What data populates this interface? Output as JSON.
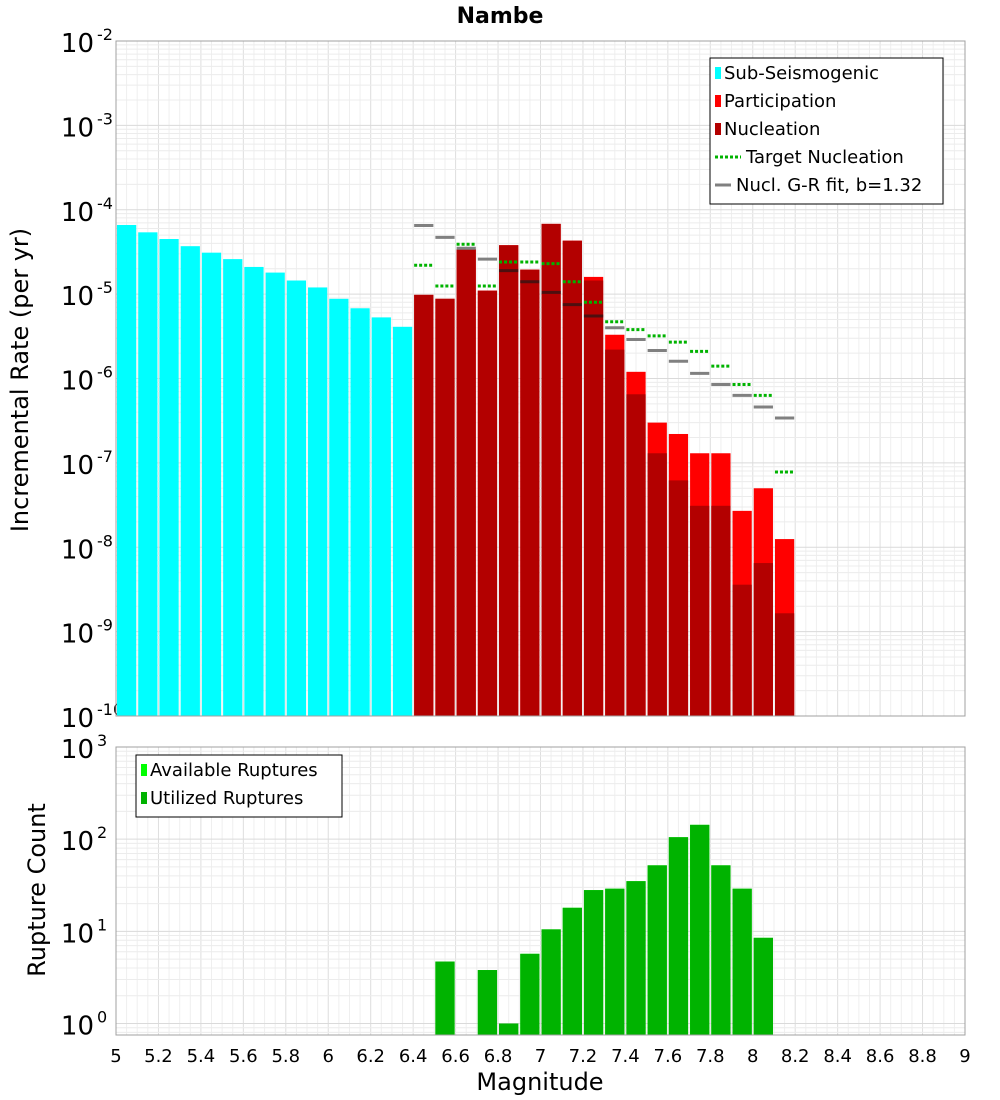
{
  "chart_data": [
    {
      "type": "bar",
      "title": "Nambe",
      "ylabel": "Incremental Rate (per yr)",
      "xlabel": "",
      "xlim": [
        5,
        9
      ],
      "ylim": [
        1e-10,
        0.01
      ],
      "yscale": "log",
      "grid": true,
      "legend_placement": "top-right",
      "legend": [
        {
          "label": "Sub-Seismogenic",
          "color": "#00ffff",
          "style": "box"
        },
        {
          "label": "Participation",
          "color": "#ff0000",
          "style": "box"
        },
        {
          "label": "Nucleation",
          "color": "#b30000",
          "style": "box"
        },
        {
          "label": "Target Nucleation",
          "color": "#00b300",
          "style": "dotted"
        },
        {
          "label": "Nucl. G-R fit, b=1.32",
          "color": "#808080",
          "style": "line"
        }
      ],
      "series": [
        {
          "name": "Sub-Seismogenic",
          "color": "#00ffff",
          "x": [
            5.05,
            5.15,
            5.25,
            5.35,
            5.45,
            5.55,
            5.65,
            5.75,
            5.85,
            5.95,
            6.05,
            6.15,
            6.25,
            6.35
          ],
          "values": [
            6.6e-05,
            5.4e-05,
            4.5e-05,
            3.7e-05,
            3.1e-05,
            2.6e-05,
            2.1e-05,
            1.8e-05,
            1.45e-05,
            1.2e-05,
            8.8e-06,
            6.8e-06,
            5.3e-06,
            4.1e-06
          ]
        },
        {
          "name": "Participation",
          "color": "#ff0000",
          "x": [
            6.45,
            6.55,
            6.65,
            6.75,
            6.85,
            6.95,
            7.05,
            7.15,
            7.25,
            7.35,
            7.45,
            7.55,
            7.65,
            7.75,
            7.85,
            7.95,
            8.05,
            8.15
          ],
          "values": [
            9.8e-06,
            8.8e-06,
            3.4e-05,
            1.1e-05,
            3.8e-05,
            1.95e-05,
            6.8e-05,
            4.3e-05,
            1.6e-05,
            3.3e-06,
            1.2e-06,
            3e-07,
            2.2e-07,
            1.3e-07,
            1.3e-07,
            2.7e-08,
            5e-08,
            1.25e-08
          ]
        },
        {
          "name": "Nucleation",
          "color": "#b30000",
          "x": [
            6.45,
            6.55,
            6.65,
            6.75,
            6.85,
            6.95,
            7.05,
            7.15,
            7.25,
            7.35,
            7.45,
            7.55,
            7.65,
            7.75,
            7.85,
            7.95,
            8.05,
            8.15
          ],
          "values": [
            9.8e-06,
            8.8e-06,
            3.4e-05,
            1.1e-05,
            3.8e-05,
            1.95e-05,
            6.8e-05,
            4.3e-05,
            1.45e-05,
            2.2e-06,
            6.5e-07,
            1.3e-07,
            6.2e-08,
            3.1e-08,
            3.1e-08,
            3.6e-09,
            6.5e-09,
            1.65e-09
          ]
        },
        {
          "name": "Target Nucleation",
          "color": "#00b300",
          "style": "dotted",
          "x": [
            6.45,
            6.55,
            6.65,
            6.75,
            6.85,
            6.95,
            7.05,
            7.15,
            7.25,
            7.35,
            7.45,
            7.55,
            7.65,
            7.75,
            7.85,
            7.95,
            8.05,
            8.15
          ],
          "values": [
            2.2e-05,
            1.25e-05,
            3.9e-05,
            1.25e-05,
            2.4e-05,
            2.4e-05,
            2.3e-05,
            1.4e-05,
            8e-06,
            4.7e-06,
            3.8e-06,
            3.2e-06,
            2.7e-06,
            2.1e-06,
            1.4e-06,
            8.5e-07,
            6.3e-07,
            7.8e-08
          ]
        },
        {
          "name": "Nucl. G-R fit, b=1.32",
          "color": "#808080",
          "style": "line",
          "x": [
            6.45,
            6.55,
            6.65,
            6.75,
            6.85,
            6.95,
            7.05,
            7.15,
            7.25,
            7.35,
            7.45,
            7.55,
            7.65,
            7.75,
            7.85,
            7.95,
            8.05,
            8.15
          ],
          "values": [
            6.5e-05,
            4.7e-05,
            3.5e-05,
            2.6e-05,
            1.9e-05,
            1.4e-05,
            1.05e-05,
            7.5e-06,
            5.5e-06,
            4e-06,
            2.9e-06,
            2.15e-06,
            1.6e-06,
            1.15e-06,
            8.5e-07,
            6.3e-07,
            4.6e-07,
            3.4e-07
          ]
        }
      ]
    },
    {
      "type": "bar",
      "title": "",
      "ylabel": "Rupture Count",
      "xlabel": "Magnitude",
      "xlim": [
        5,
        9
      ],
      "ylim": [
        0.75,
        1000
      ],
      "yscale": "log",
      "grid": true,
      "legend_placement": "top-left",
      "xticks": [
        "5",
        "5.2",
        "5.4",
        "5.6",
        "5.8",
        "6",
        "6.2",
        "6.4",
        "6.6",
        "6.8",
        "7",
        "7.2",
        "7.4",
        "7.6",
        "7.8",
        "8",
        "8.2",
        "8.4",
        "8.6",
        "8.8",
        "9"
      ],
      "legend": [
        {
          "label": "Available Ruptures",
          "color": "#00ff00",
          "style": "box"
        },
        {
          "label": "Utilized Ruptures",
          "color": "#00b300",
          "style": "box"
        }
      ],
      "series": [
        {
          "name": "Available Ruptures",
          "color": "#00ff00",
          "x": [
            6.55,
            6.75,
            6.85,
            6.95,
            7.05,
            7.15,
            7.25,
            7.35,
            7.45,
            7.55,
            7.65,
            7.75,
            7.85,
            7.95,
            8.05
          ],
          "values": [
            4.7,
            3.8,
            1.0,
            5.7,
            10.5,
            18,
            28,
            29,
            35,
            52,
            105,
            143,
            52,
            29,
            8.5
          ]
        },
        {
          "name": "Utilized Ruptures",
          "color": "#00b300",
          "x": [
            6.55,
            6.75,
            6.85,
            6.95,
            7.05,
            7.15,
            7.25,
            7.35,
            7.45,
            7.55,
            7.65,
            7.75,
            7.85,
            7.95,
            8.05
          ],
          "values": [
            4.7,
            3.8,
            1.0,
            5.7,
            10.5,
            18,
            28,
            29,
            35,
            52,
            105,
            143,
            52,
            29,
            8.5
          ]
        }
      ]
    }
  ]
}
